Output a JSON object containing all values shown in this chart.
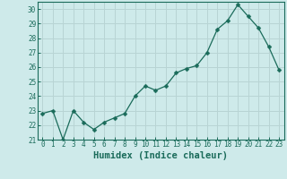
{
  "x": [
    0,
    1,
    2,
    3,
    4,
    5,
    6,
    7,
    8,
    9,
    10,
    11,
    12,
    13,
    14,
    15,
    16,
    17,
    18,
    19,
    20,
    21,
    22,
    23
  ],
  "y": [
    22.8,
    23.0,
    21.0,
    23.0,
    22.2,
    21.7,
    22.2,
    22.5,
    22.8,
    24.0,
    24.7,
    24.4,
    24.7,
    25.6,
    25.9,
    26.1,
    27.0,
    28.6,
    29.2,
    30.3,
    29.5,
    28.7,
    27.4,
    25.8
  ],
  "line_color": "#1a6b5a",
  "marker": "D",
  "marker_size": 2.5,
  "bg_color": "#ceeaea",
  "grid_color": "#b8d4d4",
  "xlabel": "Humidex (Indice chaleur)",
  "ylim": [
    21,
    30.5
  ],
  "xlim": [
    -0.5,
    23.5
  ],
  "yticks": [
    21,
    22,
    23,
    24,
    25,
    26,
    27,
    28,
    29,
    30
  ],
  "xticks": [
    0,
    1,
    2,
    3,
    4,
    5,
    6,
    7,
    8,
    9,
    10,
    11,
    12,
    13,
    14,
    15,
    16,
    17,
    18,
    19,
    20,
    21,
    22,
    23
  ],
  "tick_color": "#1a6b5a",
  "tick_fontsize": 5.5,
  "xlabel_fontsize": 7.5,
  "linewidth": 0.9
}
